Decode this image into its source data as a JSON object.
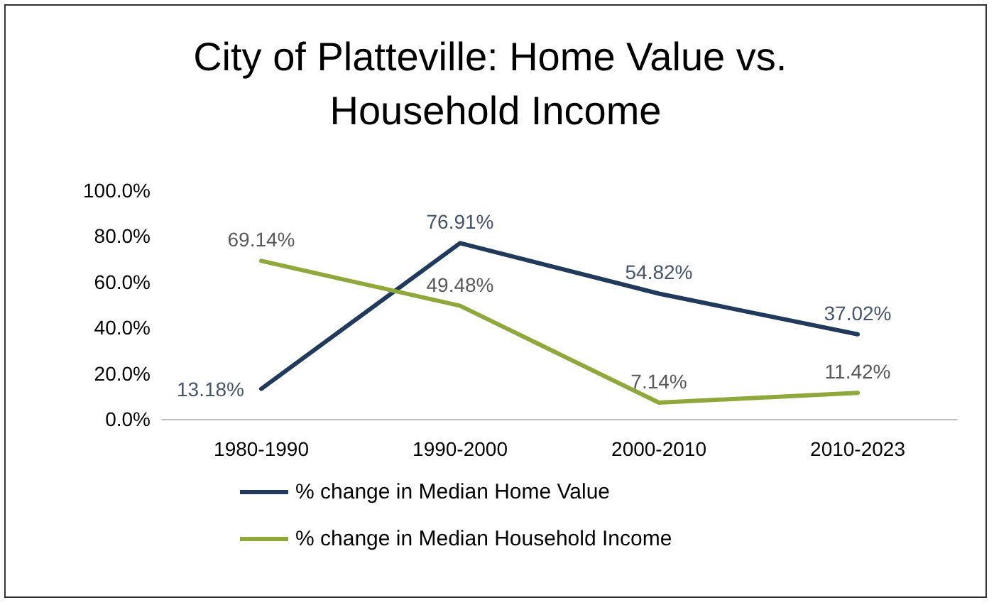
{
  "chart_data": {
    "type": "line",
    "title": "City of Platteville: Home Value vs. Household Income",
    "categories": [
      "1980-1990",
      "1990-2000",
      "2000-2010",
      "2010-2023"
    ],
    "series": [
      {
        "name": "% change in Median Home Value",
        "color": "#1f3a5a",
        "values": [
          13.18,
          76.91,
          54.82,
          37.02
        ],
        "value_labels": [
          "13.18%",
          "76.91%",
          "54.82%",
          "37.02%"
        ]
      },
      {
        "name": "% change in Median Household Income",
        "color": "#8fa83c",
        "values": [
          69.14,
          49.48,
          7.14,
          11.42
        ],
        "value_labels": [
          "69.14%",
          "49.48%",
          "7.14%",
          "11.42%"
        ]
      }
    ],
    "ylim": [
      0,
      100
    ],
    "yticks": [
      {
        "value": 0,
        "label": "0.0%"
      },
      {
        "value": 20,
        "label": "20.0%"
      },
      {
        "value": 40,
        "label": "40.0%"
      },
      {
        "value": 60,
        "label": "60.0%"
      },
      {
        "value": 80,
        "label": "80.0%"
      },
      {
        "value": 100,
        "label": "100.0%"
      }
    ],
    "grid": false,
    "legend": "bottom",
    "marker": "none",
    "line_style": "solid"
  }
}
